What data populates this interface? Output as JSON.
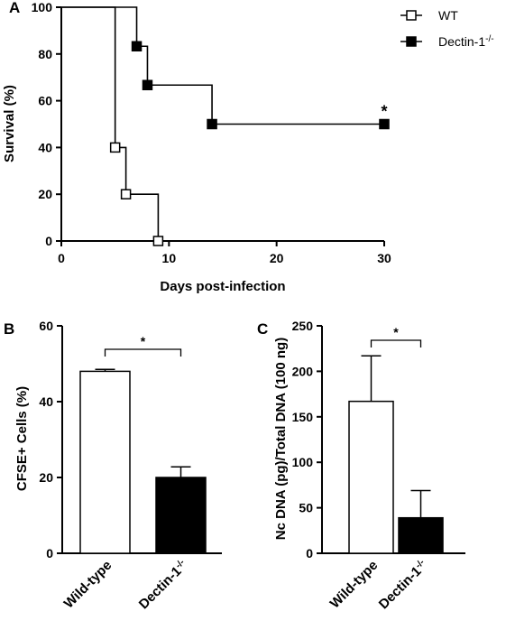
{
  "colors": {
    "ink": "#000000",
    "wt_fill": "#ffffff",
    "dectin_fill": "#000000",
    "background": "#ffffff"
  },
  "panels": {
    "A": {
      "letter": "A"
    },
    "B": {
      "letter": "B"
    },
    "C": {
      "letter": "C"
    }
  },
  "chart_data": [
    {
      "id": "A",
      "type": "line",
      "subtype": "step-survival",
      "xlabel": "Days post-infection",
      "ylabel": "Survival (%)",
      "xlim": [
        0,
        30
      ],
      "ylim": [
        0,
        100
      ],
      "xticks": [
        0,
        10,
        20,
        30
      ],
      "yticks": [
        0,
        20,
        40,
        60,
        80,
        100
      ],
      "grid": false,
      "legend_placement": "top-right",
      "series": [
        {
          "name": "WT",
          "marker": "open-square",
          "x": [
            0,
            5,
            6,
            9
          ],
          "y": [
            100,
            40,
            20,
            0
          ]
        },
        {
          "name": "Dectin-1",
          "name_sup": "-/-",
          "marker": "filled-square",
          "x": [
            0,
            7,
            8,
            14,
            30
          ],
          "y": [
            100,
            83.3,
            66.7,
            50,
            50
          ]
        }
      ],
      "annotations": [
        {
          "text": "*",
          "x": 30,
          "y": 50
        }
      ]
    },
    {
      "id": "B",
      "type": "bar",
      "ylabel": "CFSE+ Cells (%)",
      "ylim": [
        0,
        60
      ],
      "yticks": [
        0,
        20,
        40,
        60
      ],
      "categories": [
        "Wild-type",
        "Dectin-1"
      ],
      "category_sup": [
        "",
        "-/-"
      ],
      "values": [
        48,
        20
      ],
      "errors": [
        0.5,
        2.8
      ],
      "bar_fills": [
        "open",
        "filled"
      ],
      "significance": "*"
    },
    {
      "id": "C",
      "type": "bar",
      "ylabel": "Nc DNA (pg)/Total DNA (100 ng)",
      "ylim": [
        0,
        250
      ],
      "yticks": [
        0,
        50,
        100,
        150,
        200,
        250
      ],
      "categories": [
        "Wild-type",
        "Dectin-1"
      ],
      "category_sup": [
        "",
        "-/-"
      ],
      "values": [
        167,
        39
      ],
      "errors": [
        50,
        30
      ],
      "bar_fills": [
        "open",
        "filled"
      ],
      "significance": "*"
    }
  ]
}
